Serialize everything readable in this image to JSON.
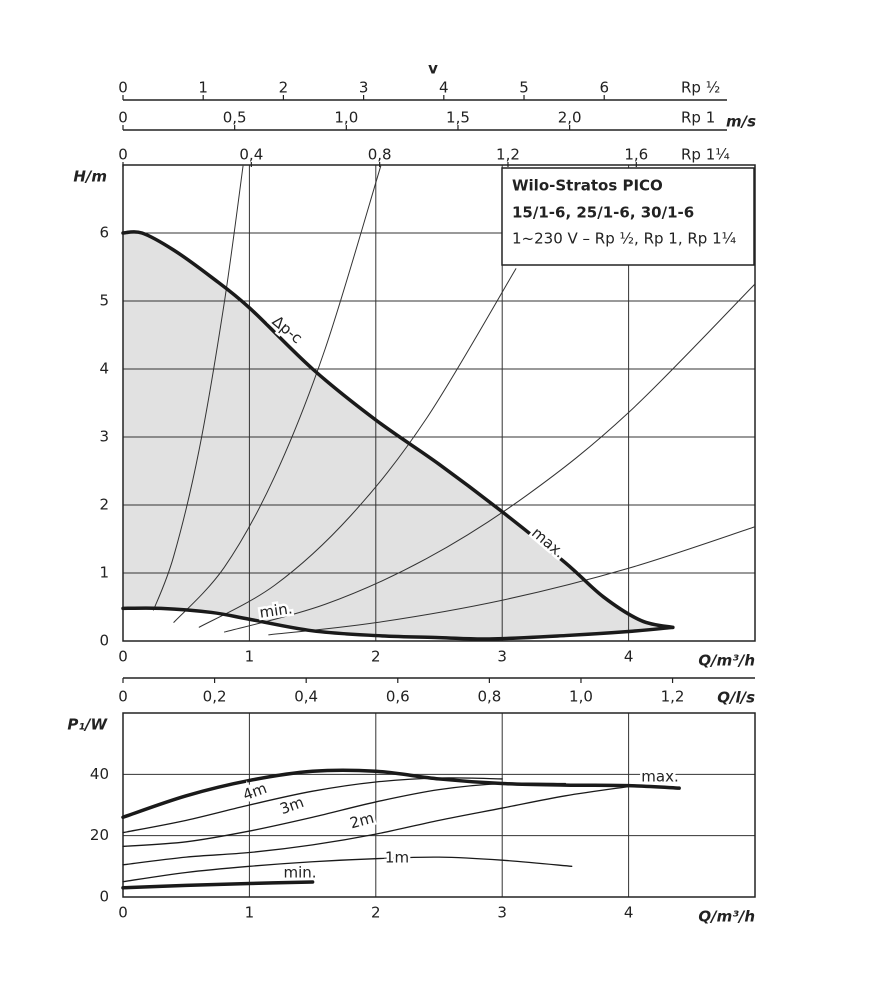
{
  "chart_data": [
    {
      "type": "line",
      "title": "Wilo-Stratos PICO",
      "subtitle": "15/1-6, 25/1-6, 30/1-6",
      "note": "1~230 V – Rp ½, Rp 1, Rp 1¼",
      "x_label": "Q/m³/h",
      "y_label": "H/m",
      "xlim": [
        0,
        5
      ],
      "ylim": [
        0,
        7
      ],
      "xticks": [
        0,
        1,
        2,
        3,
        4
      ],
      "yticks": [
        0,
        1,
        2,
        3,
        4,
        5,
        6
      ],
      "grid": true,
      "area_color": "#e1e1e1",
      "annotation": "Δp-c",
      "series": [
        {
          "name": "max.",
          "color": "#1a1a1a",
          "width": 3.5,
          "x": [
            0,
            0.15,
            0.4,
            0.7,
            1,
            1.5,
            2,
            2.5,
            3,
            3.5,
            3.8,
            4.1,
            4.35
          ],
          "values": [
            6.0,
            6.0,
            5.75,
            5.35,
            4.9,
            4.0,
            3.25,
            2.6,
            1.9,
            1.15,
            0.65,
            0.3,
            0.2
          ]
        },
        {
          "name": "min.",
          "color": "#1a1a1a",
          "width": 3.5,
          "x": [
            0,
            0.3,
            0.7,
            1,
            1.5,
            2,
            2.5,
            2.9,
            3.5,
            4,
            4.35
          ],
          "values": [
            0.48,
            0.48,
            0.42,
            0.32,
            0.15,
            0.08,
            0.05,
            0.03,
            0.08,
            0.14,
            0.2
          ]
        }
      ],
      "system_curves": [
        {
          "x": [
            0.24,
            0.4,
            0.6,
            0.8,
            0.95
          ],
          "values": [
            0.45,
            1.24,
            2.79,
            4.96,
            6.99
          ]
        },
        {
          "x": [
            0.4,
            0.8,
            1.2,
            1.6,
            2.04
          ],
          "values": [
            0.27,
            1.08,
            2.42,
            4.3,
            6.99
          ]
        },
        {
          "x": [
            0.6,
            1.2,
            1.8,
            2.4,
            3.11
          ],
          "values": [
            0.2,
            0.82,
            1.84,
            3.27,
            5.48
          ]
        },
        {
          "x": [
            0.8,
            1.6,
            2.4,
            3.2,
            4.0,
            5.0
          ],
          "values": [
            0.13,
            0.54,
            1.21,
            2.15,
            3.36,
            5.25
          ]
        },
        {
          "x": [
            1.15,
            2,
            3,
            4,
            5
          ],
          "values": [
            0.09,
            0.27,
            0.6,
            1.07,
            1.68
          ]
        }
      ],
      "velocity_label": "v",
      "velocity_unit": "m/s",
      "velocity_scales": [
        {
          "name": "Rp ½",
          "xlim": [
            0,
            7.88
          ],
          "xticks": [
            0,
            1,
            2,
            3,
            4,
            5,
            6
          ]
        },
        {
          "name": "Rp 1",
          "xlim": [
            0,
            2.83
          ],
          "xticks": [
            0,
            {
              "value": 0.5,
              "label": "0,5"
            },
            {
              "value": 1.0,
              "label": "1,0"
            },
            {
              "value": 1.5,
              "label": "1,5"
            },
            {
              "value": 2.0,
              "label": "2,0"
            }
          ]
        },
        {
          "name": "Rp 1¼",
          "xlim": [
            0,
            1.97
          ],
          "xticks": [
            0,
            {
              "value": 0.4,
              "label": "0,4"
            },
            {
              "value": 0.8,
              "label": "0,8"
            },
            {
              "value": 1.2,
              "label": "1,2"
            },
            {
              "value": 1.6,
              "label": "1,6"
            }
          ]
        }
      ]
    },
    {
      "type": "line",
      "x_label": "Q/m³/h",
      "y_label": "P₁/W",
      "xlim": [
        0,
        5
      ],
      "ylim": [
        0,
        60
      ],
      "xticks": [
        0,
        1,
        2,
        3,
        4
      ],
      "yticks": [
        0,
        20,
        40
      ],
      "grid": true,
      "x2label": "Q/l/s",
      "x2lim": [
        0,
        1.38
      ],
      "x2ticks": [
        0,
        {
          "value": 0.2,
          "label": "0,2"
        },
        {
          "value": 0.4,
          "label": "0,4"
        },
        {
          "value": 0.6,
          "label": "0,6"
        },
        {
          "value": 0.8,
          "label": "0,8"
        },
        {
          "value": 1.0,
          "label": "1,0"
        },
        {
          "value": 1.2,
          "label": "1,2"
        }
      ],
      "series": [
        {
          "name": "max.",
          "color": "#1a1a1a",
          "width": 3.5,
          "x": [
            0,
            0.5,
            1,
            1.5,
            2,
            2.5,
            3,
            3.5,
            4,
            4.4
          ],
          "values": [
            26,
            33,
            38,
            41,
            41,
            38.5,
            37,
            36.5,
            36.3,
            35.5
          ]
        },
        {
          "name": "4m",
          "color": "#1a1a1a",
          "width": 1.3,
          "x": [
            0,
            0.5,
            1,
            1.5,
            2,
            2.5,
            3
          ],
          "values": [
            21,
            25,
            30,
            34.5,
            37.5,
            38.8,
            38.5
          ]
        },
        {
          "name": "3m",
          "color": "#1a1a1a",
          "width": 1.3,
          "x": [
            0,
            0.5,
            1,
            1.5,
            2,
            2.5,
            3,
            3.5
          ],
          "values": [
            16.5,
            18,
            21.5,
            26,
            31,
            35,
            37,
            37
          ]
        },
        {
          "name": "2m",
          "color": "#1a1a1a",
          "width": 1.3,
          "x": [
            0,
            0.5,
            1,
            1.5,
            2,
            2.5,
            3,
            3.5,
            4
          ],
          "values": [
            10.5,
            13,
            14.5,
            17,
            20.5,
            25,
            29,
            33,
            36
          ]
        },
        {
          "name": "1m",
          "color": "#1a1a1a",
          "width": 1.3,
          "x": [
            0,
            0.5,
            1,
            1.5,
            2,
            2.5,
            3,
            3.55
          ],
          "values": [
            5,
            8,
            10,
            11.5,
            12.5,
            13,
            12,
            10
          ]
        },
        {
          "name": "min.",
          "color": "#1a1a1a",
          "width": 3.5,
          "x": [
            0,
            0.5,
            1,
            1.5
          ],
          "values": [
            3,
            3.8,
            4.4,
            4.9
          ]
        }
      ]
    }
  ]
}
